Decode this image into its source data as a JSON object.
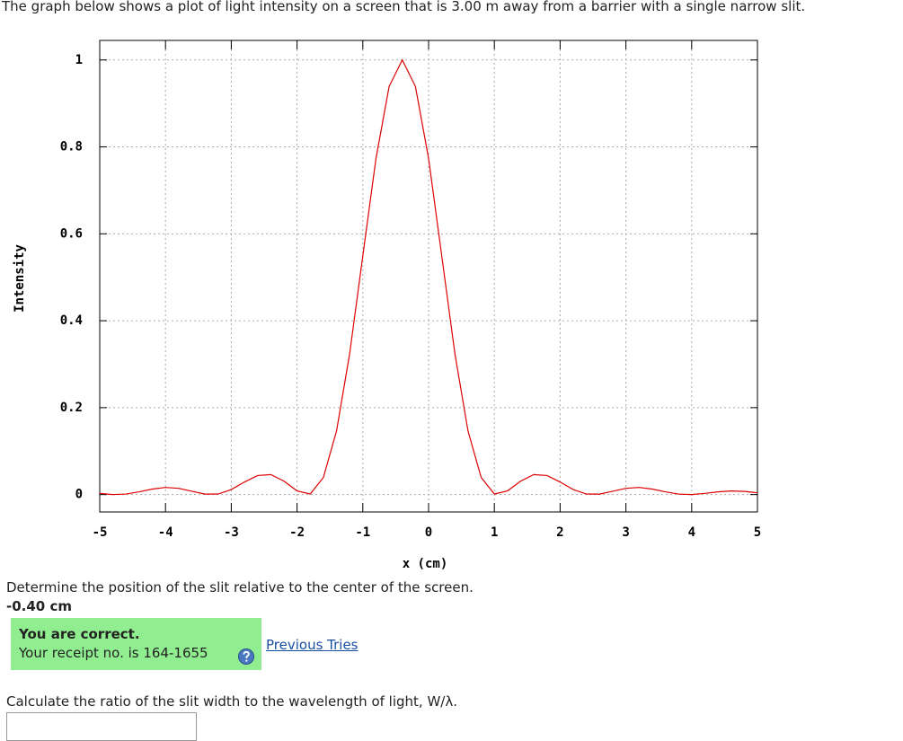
{
  "intro": "The graph below shows a plot of light intensity on a screen that is 3.00 m away from a barrier with a single narrow slit.",
  "chart_data": {
    "type": "line",
    "xlabel": "x (cm)",
    "ylabel": "Intensity",
    "x": [
      -5,
      -4.8,
      -4.6,
      -4.4,
      -4.2,
      -4,
      -3.8,
      -3.6,
      -3.4,
      -3.2,
      -3,
      -2.8,
      -2.6,
      -2.4,
      -2.2,
      -2,
      -1.8,
      -1.6,
      -1.4,
      -1.2,
      -1,
      -0.8,
      -0.6,
      -0.4,
      -0.2,
      0,
      0.2,
      0.4,
      0.6,
      0.8,
      1,
      1.2,
      1.4,
      1.6,
      1.8,
      2,
      2.2,
      2.4,
      2.6,
      2.8,
      3,
      3.2,
      3.4,
      3.6,
      3.8,
      4,
      4.2,
      4.4,
      4.6,
      4.8,
      5
    ],
    "values": [
      0.0027,
      0.0001,
      0.0012,
      0.0063,
      0.0127,
      0.0164,
      0.0144,
      0.0076,
      0.0011,
      0.0013,
      0.0115,
      0.0289,
      0.0439,
      0.046,
      0.0311,
      0.0085,
      0.0013,
      0.0393,
      0.1459,
      0.3242,
      0.5494,
      0.7733,
      0.939,
      1,
      0.939,
      0.7733,
      0.5494,
      0.3242,
      0.1459,
      0.0393,
      0.0013,
      0.0085,
      0.0311,
      0.046,
      0.0439,
      0.0289,
      0.0115,
      0.0013,
      0.0011,
      0.0076,
      0.0144,
      0.0164,
      0.0127,
      0.0063,
      0.0012,
      0.0001,
      0.0027,
      0.0063,
      0.0083,
      0.0073,
      0.0042
    ],
    "color": "#dd0000",
    "xlim": [
      -5,
      5
    ],
    "ylim": [
      -0.04,
      1.045
    ],
    "xticks": [
      -5,
      -4,
      -3,
      -2,
      -1,
      0,
      1,
      2,
      3,
      4,
      5
    ],
    "yticks": [
      0,
      0.2,
      0.4,
      0.6,
      0.8,
      1
    ],
    "grid": true
  },
  "question1": {
    "text": "Determine the position of the slit relative to the center of the screen.",
    "answer": "-0.40 cm",
    "feedback": {
      "title": "You are correct.",
      "receipt": "Your receipt no. is 164-1655"
    },
    "link": "Previous Tries"
  },
  "question2": {
    "text": "Calculate the ratio of the slit width to the wavelength of light, W/λ."
  }
}
